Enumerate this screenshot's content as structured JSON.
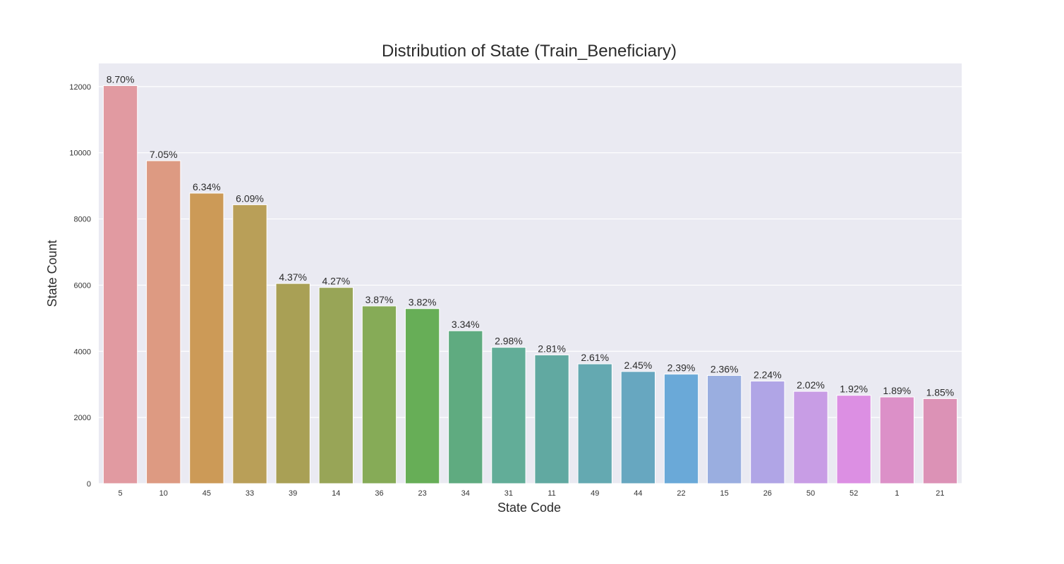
{
  "chart_data": {
    "type": "bar",
    "title": "Distribution of State (Train_Beneficiary)",
    "xlabel": "State Code",
    "ylabel": "State Count",
    "ylim": [
      0,
      12700
    ],
    "yticks": [
      0,
      2000,
      4000,
      6000,
      8000,
      10000,
      12000
    ],
    "grid": true,
    "categories": [
      "5",
      "10",
      "45",
      "33",
      "39",
      "14",
      "36",
      "23",
      "34",
      "31",
      "11",
      "49",
      "44",
      "22",
      "15",
      "26",
      "50",
      "52",
      "1",
      "21"
    ],
    "values": [
      12030,
      9760,
      8780,
      8430,
      6050,
      5930,
      5370,
      5290,
      4620,
      4120,
      3890,
      3620,
      3390,
      3310,
      3270,
      3100,
      2790,
      2670,
      2620,
      2570
    ],
    "labels": [
      "8.70%",
      "7.05%",
      "6.34%",
      "6.09%",
      "4.37%",
      "4.27%",
      "3.87%",
      "3.82%",
      "3.34%",
      "2.98%",
      "2.81%",
      "2.61%",
      "2.45%",
      "2.39%",
      "2.36%",
      "2.24%",
      "2.02%",
      "1.92%",
      "1.89%",
      "1.85%"
    ],
    "colors": [
      "#e19aa1",
      "#dd9a82",
      "#cc9a57",
      "#b99f58",
      "#a9a055",
      "#98a557",
      "#86ab57",
      "#67ae57",
      "#5fab80",
      "#62ad98",
      "#61a9a1",
      "#64a9b1",
      "#67a7c0",
      "#6aa9d8",
      "#9aaee0",
      "#b0a5e6",
      "#c89de5",
      "#dc8fe3",
      "#dc90c8",
      "#dc92b6"
    ]
  }
}
